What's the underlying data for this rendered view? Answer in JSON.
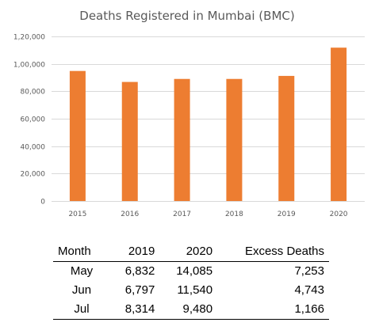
{
  "chart_data": {
    "type": "bar",
    "title": "Deaths Registered in  Mumbai (BMC)",
    "categories": [
      "2015",
      "2016",
      "2017",
      "2018",
      "2019",
      "2020"
    ],
    "values": [
      94800,
      86800,
      89000,
      89000,
      91200,
      111800
    ],
    "ylim": [
      0,
      120000
    ],
    "y_ticks": [
      0,
      20000,
      40000,
      60000,
      80000,
      100000,
      120000
    ],
    "y_tick_labels": [
      "0",
      "20,000",
      "40,000",
      "60,000",
      "80,000",
      "1,00,000",
      "1,20,000"
    ],
    "bar_color": "#ed7d31",
    "grid": true,
    "legend": "none"
  },
  "table": {
    "headers": [
      "Month",
      "2019",
      "2020",
      "Excess Deaths"
    ],
    "rows": [
      [
        "May",
        "6,832",
        "14,085",
        "7,253"
      ],
      [
        "Jun",
        "6,797",
        "11,540",
        "4,743"
      ],
      [
        "Jul",
        "8,314",
        "9,480",
        "1,166"
      ]
    ]
  }
}
